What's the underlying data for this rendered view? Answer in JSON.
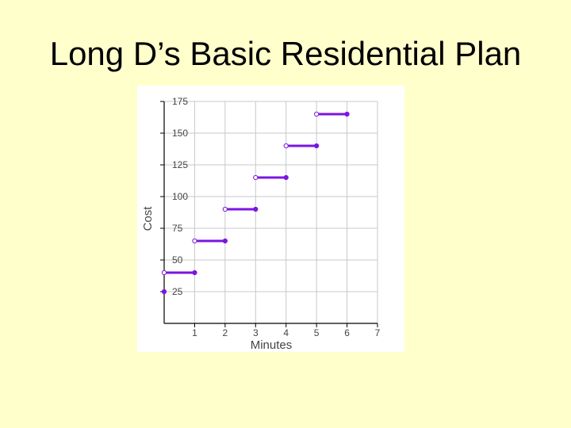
{
  "slide": {
    "title": "Long D’s Basic Residential Plan"
  },
  "chart_data": {
    "type": "line",
    "title": "",
    "xlabel": "Minutes",
    "ylabel": "Cost",
    "xlim": [
      0,
      7
    ],
    "ylim": [
      0,
      175
    ],
    "x_ticks": [
      1,
      2,
      3,
      4,
      5,
      6,
      7
    ],
    "y_ticks": [
      25,
      50,
      75,
      100,
      125,
      150,
      175
    ],
    "grid": true,
    "colors": {
      "series": "#7B16E0",
      "grid": "#c8c8c8",
      "axis": "#000000",
      "tick_text": "#444444"
    },
    "series": [
      {
        "segments": [
          {
            "x_start": 0,
            "x_end": 1,
            "y": 40,
            "start": "open",
            "end": "closed"
          },
          {
            "x_start": 1,
            "x_end": 2,
            "y": 65,
            "start": "open",
            "end": "closed"
          },
          {
            "x_start": 2,
            "x_end": 3,
            "y": 90,
            "start": "open",
            "end": "closed"
          },
          {
            "x_start": 3,
            "x_end": 4,
            "y": 115,
            "start": "open",
            "end": "closed"
          },
          {
            "x_start": 4,
            "x_end": 5,
            "y": 140,
            "start": "open",
            "end": "closed"
          },
          {
            "x_start": 5,
            "x_end": 6,
            "y": 165,
            "start": "open",
            "end": "closed"
          }
        ],
        "points": [
          {
            "x": 0,
            "y": 25,
            "marker": "closed"
          }
        ]
      }
    ]
  }
}
